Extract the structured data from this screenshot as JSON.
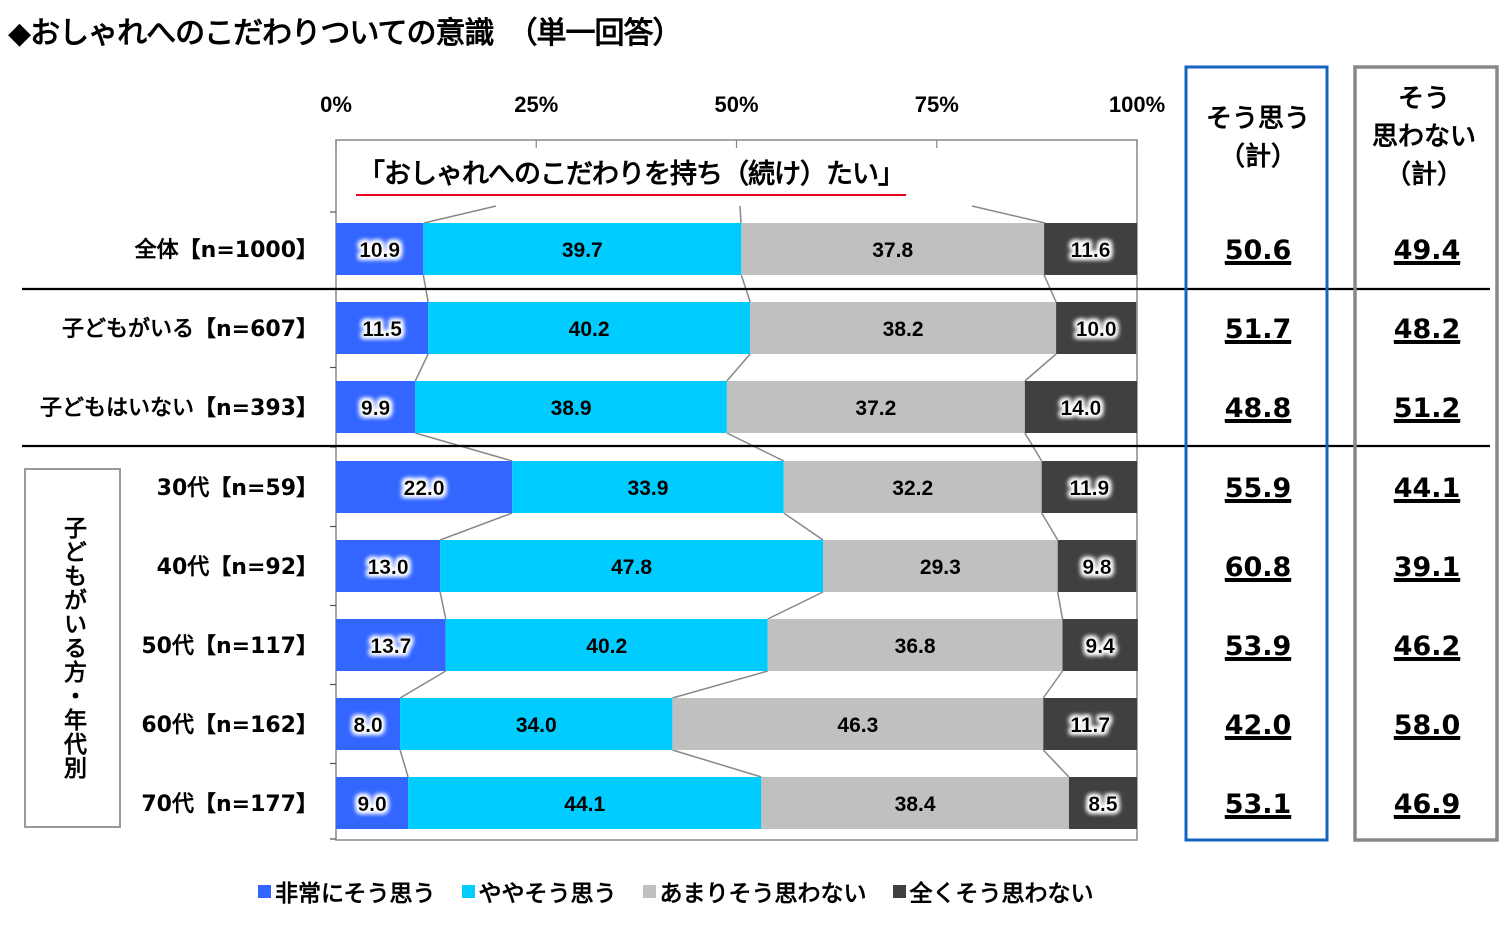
{
  "title": "◆おしゃれへのこだわりついての意識　（単一回答）",
  "subtitle": "「おしゃれへのこだわりを持ち（続け）たい」",
  "chart_data": {
    "type": "bar",
    "orientation": "horizontal",
    "stacked": "100%",
    "title": "おしゃれへのこだわりついての意識（単一回答）",
    "subtitle": "「おしゃれへのこだわりを持ち（続け）たい」",
    "xlabel": "",
    "ylabel": "",
    "xlim": [
      0,
      100
    ],
    "x_ticks": [
      "0%",
      "25%",
      "50%",
      "75%",
      "100%"
    ],
    "legend_position": "bottom",
    "categories": [
      "全体【n=1000】",
      "子どもがいる【n=607】",
      "子どもはいない【n=393】",
      "30代【n=59】",
      "40代【n=92】",
      "50代【n=117】",
      "60代【n=162】",
      "70代【n=177】"
    ],
    "group_label": "子どもがいる方・年代別",
    "series": [
      {
        "name": "非常にそう思う",
        "color": "#3366ff",
        "values": [
          10.9,
          11.5,
          9.9,
          22.0,
          13.0,
          13.7,
          8.0,
          9.0
        ],
        "labels": [
          "10.9",
          "11.5",
          "9.9",
          "22.0",
          "13.0",
          "13.7",
          "8.0",
          "9.0"
        ]
      },
      {
        "name": "ややそう思う",
        "color": "#00ccff",
        "values": [
          39.7,
          40.2,
          38.9,
          33.9,
          47.8,
          40.2,
          34.0,
          44.1
        ],
        "labels": [
          "39.7",
          "40.2",
          "38.9",
          "33.9",
          "47.8",
          "40.2",
          "34.0",
          "44.1"
        ]
      },
      {
        "name": "あまりそう思わない",
        "color": "#c0c0c0",
        "values": [
          37.8,
          38.2,
          37.2,
          32.2,
          29.3,
          36.8,
          46.3,
          38.4
        ],
        "labels": [
          "37.8",
          "38.2",
          "37.2",
          "32.2",
          "29.3",
          "36.8",
          "46.3",
          "38.4"
        ]
      },
      {
        "name": "全くそう思わない",
        "color": "#404040",
        "values": [
          11.6,
          10.0,
          14.0,
          11.9,
          9.8,
          9.4,
          11.7,
          8.5
        ],
        "labels": [
          "11.6",
          "10.0",
          "14.0",
          "11.9",
          "9.8",
          "9.4",
          "11.7",
          "8.5"
        ]
      }
    ],
    "summary_columns": [
      {
        "header": [
          "そう思う",
          "（計）"
        ],
        "border_color": "#1565c0",
        "values": [
          "50.6",
          "51.7",
          "48.8",
          "55.9",
          "60.8",
          "53.9",
          "42.0",
          "53.1"
        ]
      },
      {
        "header": [
          "そう",
          "思わない",
          "（計）"
        ],
        "border_color": "#888888",
        "values": [
          "49.4",
          "48.2",
          "51.2",
          "44.1",
          "39.1",
          "46.2",
          "58.0",
          "46.9"
        ]
      }
    ]
  }
}
